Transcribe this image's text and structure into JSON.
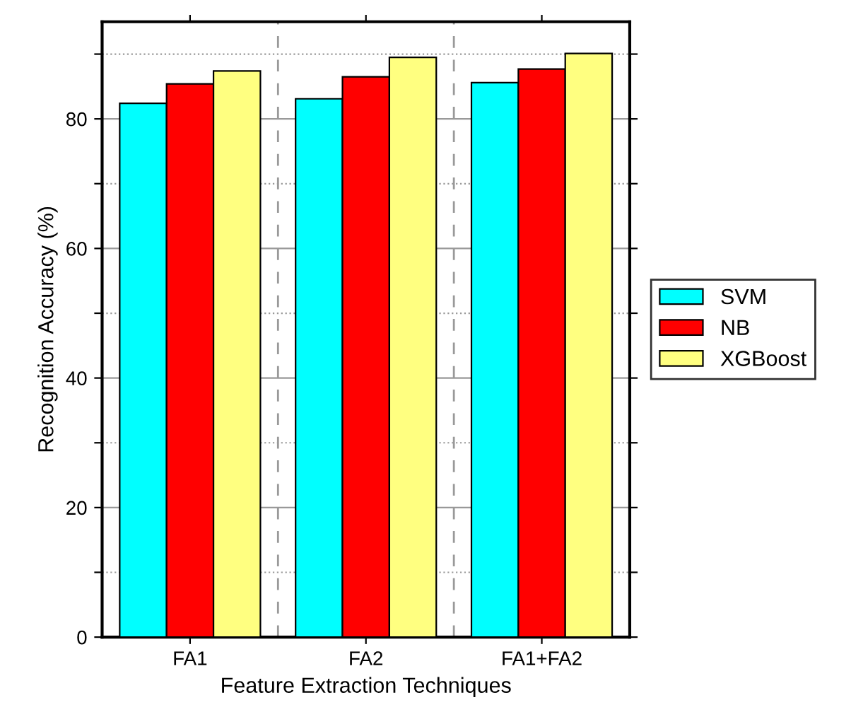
{
  "chart_data": {
    "type": "bar",
    "xlabel": "Feature Extraction Techniques",
    "ylabel": "Recognition Accuracy (%)",
    "categories": [
      "FA1",
      "FA2",
      "FA1+FA2"
    ],
    "series": [
      {
        "name": "SVM",
        "color": "#00ffff",
        "values": [
          82.4,
          83.1,
          85.6
        ]
      },
      {
        "name": "NB",
        "color": "#ff0000",
        "values": [
          85.4,
          86.5,
          87.7
        ]
      },
      {
        "name": "XGBoost",
        "color": "#ffff80",
        "values": [
          87.4,
          89.5,
          90.1
        ]
      }
    ],
    "ylim": [
      0,
      95
    ],
    "yticks": [
      0,
      {
        "value": 10,
        "label": null
      },
      20,
      {
        "value": 30,
        "label": null
      },
      40,
      {
        "value": 50,
        "label": null
      },
      60,
      {
        "value": 70,
        "label": null
      },
      80,
      {
        "value": 90,
        "label": null
      }
    ],
    "grid": true,
    "legend": "right"
  }
}
